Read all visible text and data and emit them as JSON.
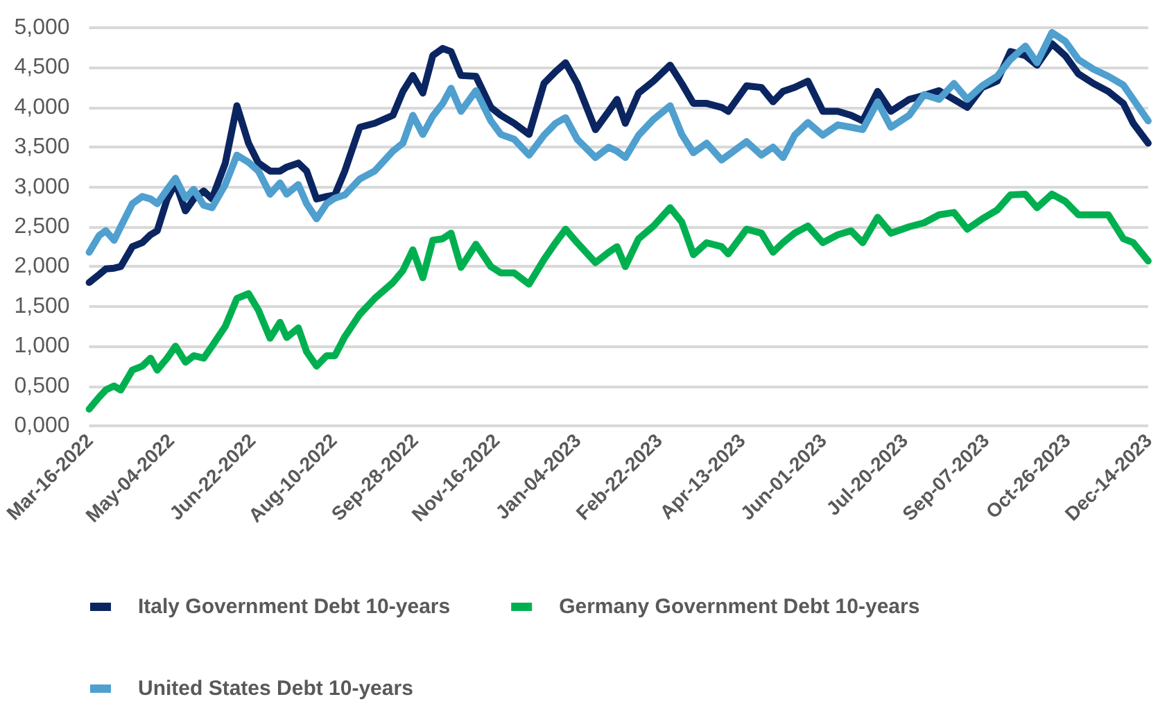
{
  "chart_data": {
    "type": "line",
    "x": [
      "2022-03-16",
      "2022-03-22",
      "2022-03-26",
      "2022-03-31",
      "2022-04-04",
      "2022-04-11",
      "2022-04-17",
      "2022-04-22",
      "2022-04-26",
      "2022-05-02",
      "2022-05-07",
      "2022-05-13",
      "2022-05-18",
      "2022-05-24",
      "2022-05-29",
      "2022-06-06",
      "2022-06-13",
      "2022-06-20",
      "2022-06-26",
      "2022-07-03",
      "2022-07-09",
      "2022-07-13",
      "2022-07-20",
      "2022-07-25",
      "2022-07-31",
      "2022-08-06",
      "2022-08-11",
      "2022-08-17",
      "2022-08-26",
      "2022-09-04",
      "2022-09-15",
      "2022-09-21",
      "2022-09-27",
      "2022-10-03",
      "2022-10-09",
      "2022-10-15",
      "2022-10-20",
      "2022-10-26",
      "2022-11-04",
      "2022-11-13",
      "2022-11-19",
      "2022-11-27",
      "2022-12-06",
      "2022-12-15",
      "2022-12-22",
      "2022-12-28",
      "2023-01-04",
      "2023-01-15",
      "2023-01-23",
      "2023-01-28",
      "2023-02-02",
      "2023-02-10",
      "2023-02-19",
      "2023-03-01",
      "2023-03-08",
      "2023-03-15",
      "2023-03-23",
      "2023-04-01",
      "2023-04-05",
      "2023-04-16",
      "2023-04-25",
      "2023-05-02",
      "2023-05-08",
      "2023-05-15",
      "2023-05-23",
      "2023-06-01",
      "2023-06-10",
      "2023-06-18",
      "2023-06-25",
      "2023-07-04",
      "2023-07-12",
      "2023-07-23",
      "2023-08-01",
      "2023-08-10",
      "2023-08-19",
      "2023-08-27",
      "2023-09-05",
      "2023-09-14",
      "2023-09-22",
      "2023-10-01",
      "2023-10-08",
      "2023-10-17",
      "2023-10-25",
      "2023-11-02",
      "2023-11-11",
      "2023-11-20",
      "2023-11-29",
      "2023-12-05",
      "2023-12-14"
    ],
    "series": [
      {
        "name": "Italy Government Debt 10-years",
        "color": "#0b2561",
        "values": [
          1.8,
          1.9,
          1.97,
          1.98,
          2.0,
          2.25,
          2.3,
          2.4,
          2.45,
          2.85,
          3.05,
          2.7,
          2.85,
          2.95,
          2.85,
          3.3,
          4.02,
          3.55,
          3.3,
          3.2,
          3.2,
          3.25,
          3.3,
          3.2,
          2.85,
          2.88,
          2.9,
          3.2,
          3.75,
          3.8,
          3.9,
          4.2,
          4.4,
          4.18,
          4.65,
          4.74,
          4.7,
          4.4,
          4.39,
          4.0,
          3.9,
          3.8,
          3.66,
          4.3,
          4.45,
          4.56,
          4.3,
          3.72,
          3.95,
          4.1,
          3.8,
          4.18,
          4.33,
          4.53,
          4.3,
          4.05,
          4.05,
          4.0,
          3.95,
          4.27,
          4.25,
          4.07,
          4.2,
          4.25,
          4.33,
          3.95,
          3.95,
          3.9,
          3.83,
          4.2,
          3.95,
          4.1,
          4.15,
          4.21,
          4.1,
          4.0,
          4.25,
          4.33,
          4.7,
          4.65,
          4.53,
          4.8,
          4.65,
          4.42,
          4.3,
          4.2,
          4.05,
          3.8,
          3.55
        ]
      },
      {
        "name": "Germany Government Debt 10-years",
        "color": "#00b050",
        "values": [
          0.21,
          0.36,
          0.45,
          0.5,
          0.45,
          0.7,
          0.75,
          0.85,
          0.7,
          0.85,
          1.0,
          0.8,
          0.88,
          0.85,
          1.0,
          1.25,
          1.6,
          1.66,
          1.45,
          1.1,
          1.3,
          1.11,
          1.23,
          0.93,
          0.75,
          0.88,
          0.88,
          1.12,
          1.4,
          1.6,
          1.8,
          1.95,
          2.21,
          1.86,
          2.33,
          2.35,
          2.42,
          1.99,
          2.28,
          2.0,
          1.92,
          1.92,
          1.78,
          2.09,
          2.3,
          2.47,
          2.3,
          2.05,
          2.18,
          2.25,
          2.0,
          2.35,
          2.51,
          2.74,
          2.56,
          2.15,
          2.3,
          2.25,
          2.16,
          2.47,
          2.42,
          2.18,
          2.3,
          2.42,
          2.51,
          2.3,
          2.4,
          2.45,
          2.3,
          2.62,
          2.42,
          2.5,
          2.55,
          2.65,
          2.68,
          2.47,
          2.6,
          2.71,
          2.9,
          2.91,
          2.74,
          2.91,
          2.82,
          2.65,
          2.65,
          2.65,
          2.35,
          2.3,
          2.07
        ]
      },
      {
        "name": "United States Debt 10-years",
        "color": "#4f9fcf",
        "values": [
          2.18,
          2.39,
          2.45,
          2.33,
          2.5,
          2.79,
          2.88,
          2.85,
          2.79,
          2.97,
          3.11,
          2.86,
          2.97,
          2.77,
          2.74,
          3.03,
          3.4,
          3.31,
          3.2,
          2.91,
          3.05,
          2.91,
          3.03,
          2.79,
          2.6,
          2.79,
          2.86,
          2.9,
          3.1,
          3.2,
          3.45,
          3.55,
          3.9,
          3.66,
          3.89,
          4.05,
          4.24,
          3.95,
          4.21,
          3.83,
          3.66,
          3.6,
          3.4,
          3.65,
          3.8,
          3.87,
          3.6,
          3.37,
          3.5,
          3.45,
          3.37,
          3.65,
          3.85,
          4.02,
          3.66,
          3.43,
          3.55,
          3.34,
          3.4,
          3.57,
          3.4,
          3.5,
          3.37,
          3.65,
          3.81,
          3.65,
          3.78,
          3.75,
          3.72,
          4.07,
          3.75,
          3.9,
          4.16,
          4.1,
          4.3,
          4.1,
          4.27,
          4.39,
          4.6,
          4.77,
          4.56,
          4.94,
          4.83,
          4.6,
          4.48,
          4.39,
          4.28,
          4.1,
          3.83
        ]
      }
    ],
    "xlim": [
      "2022-03-16",
      "2023-12-14"
    ],
    "xticks": [
      {
        "value": "2022-03-16",
        "label": "Mar-16-2022"
      },
      {
        "value": "2022-05-04",
        "label": "May-04-2022"
      },
      {
        "value": "2022-06-22",
        "label": "Jun-22-2022"
      },
      {
        "value": "2022-08-10",
        "label": "Aug-10-2022"
      },
      {
        "value": "2022-09-28",
        "label": "Sep-28-2022"
      },
      {
        "value": "2022-11-16",
        "label": "Nov-16-2022"
      },
      {
        "value": "2023-01-04",
        "label": "Jan-04-2023"
      },
      {
        "value": "2023-02-22",
        "label": "Feb-22-2023"
      },
      {
        "value": "2023-04-13",
        "label": "Apr-13-2023"
      },
      {
        "value": "2023-06-01",
        "label": "Jun-01-2023"
      },
      {
        "value": "2023-07-20",
        "label": "Jul-20-2023"
      },
      {
        "value": "2023-09-07",
        "label": "Sep-07-2023"
      },
      {
        "value": "2023-10-26",
        "label": "Oct-26-2023"
      },
      {
        "value": "2023-12-14",
        "label": "Dec-14-2023"
      }
    ],
    "ylim": [
      0,
      5
    ],
    "yticks": [
      {
        "value": 0,
        "label": "0,000"
      },
      {
        "value": 0.5,
        "label": "0,500"
      },
      {
        "value": 1,
        "label": "1,000"
      },
      {
        "value": 1.5,
        "label": "1,500"
      },
      {
        "value": 2,
        "label": "2,000"
      },
      {
        "value": 2.5,
        "label": "2,500"
      },
      {
        "value": 3,
        "label": "3,000"
      },
      {
        "value": 3.5,
        "label": "3,500"
      },
      {
        "value": 4,
        "label": "4,000"
      },
      {
        "value": 4.5,
        "label": "4,500"
      },
      {
        "value": 5,
        "label": "5,000"
      }
    ],
    "grid": "y",
    "legend": "bottom",
    "marker": "none",
    "line_style": "solid"
  }
}
